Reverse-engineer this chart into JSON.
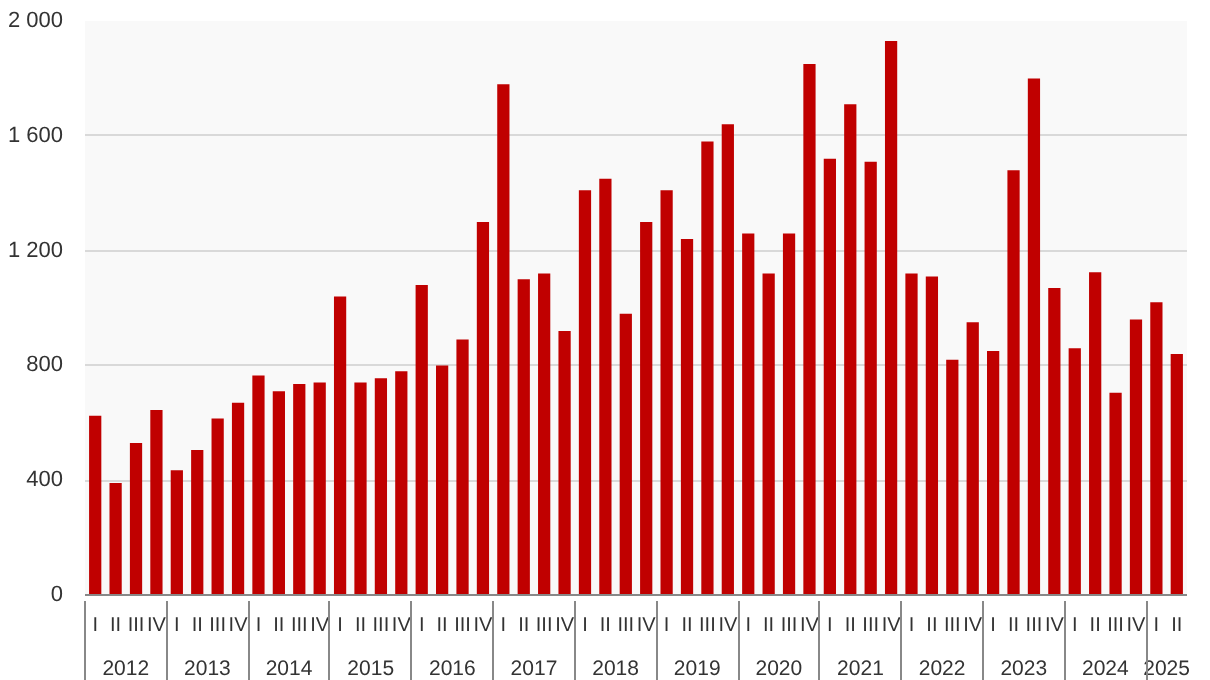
{
  "chart_data": {
    "type": "bar",
    "color": "#c00000",
    "categories": [
      "I",
      "II",
      "III",
      "IV",
      "I",
      "II",
      "III",
      "IV",
      "I",
      "II",
      "III",
      "IV",
      "I",
      "II",
      "III",
      "IV",
      "I",
      "II",
      "III",
      "IV",
      "I",
      "II",
      "III",
      "IV",
      "I",
      "II",
      "III",
      "IV",
      "I",
      "II",
      "III",
      "IV",
      "I",
      "II",
      "III",
      "IV",
      "I",
      "II",
      "III",
      "IV",
      "I",
      "II",
      "III",
      "IV",
      "I",
      "II",
      "III",
      "IV",
      "I",
      "II",
      "III",
      "IV",
      "I",
      "II"
    ],
    "values": [
      625,
      390,
      530,
      645,
      435,
      505,
      615,
      670,
      765,
      710,
      735,
      740,
      1040,
      740,
      755,
      780,
      1080,
      800,
      890,
      1300,
      1780,
      1100,
      1120,
      920,
      1410,
      1450,
      980,
      1300,
      1410,
      1240,
      1580,
      1640,
      1260,
      1120,
      1260,
      1850,
      1520,
      1710,
      1510,
      1930,
      1120,
      1110,
      820,
      950,
      850,
      1480,
      1800,
      1070,
      860,
      1125,
      705,
      960,
      1020,
      840
    ],
    "ylim": [
      0,
      2000
    ],
    "yticks": [
      0,
      400,
      800,
      {
        "value": 1200,
        "label": "1 200"
      },
      {
        "value": 1600,
        "label": "1 600"
      },
      {
        "value": 2000,
        "label": "2 000"
      }
    ],
    "annotations": [
      "2012",
      "2013",
      "2014",
      "2015",
      "2016",
      "2017",
      "2018",
      "2019",
      "2020",
      "2021",
      "2022",
      "2023",
      "2024",
      "2025"
    ],
    "grid": "y"
  }
}
